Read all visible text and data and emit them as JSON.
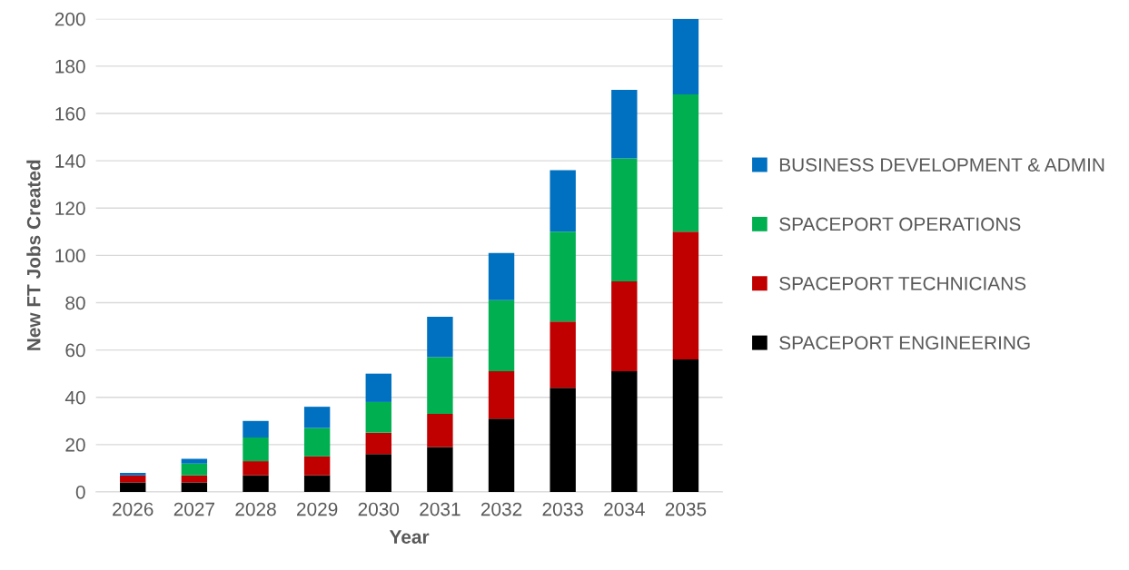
{
  "chart_data": {
    "type": "bar",
    "stacked": true,
    "xlabel": "Year",
    "ylabel": "New FT Jobs Created",
    "categories": [
      "2026",
      "2027",
      "2028",
      "2029",
      "2030",
      "2031",
      "2032",
      "2033",
      "2034",
      "2035"
    ],
    "series": [
      {
        "name": "SPACEPORT ENGINEERING",
        "color": "#000000",
        "values": [
          4,
          4,
          7,
          7,
          16,
          19,
          31,
          44,
          51,
          56
        ]
      },
      {
        "name": "SPACEPORT TECHNICIANS",
        "color": "#c00000",
        "values": [
          3,
          3,
          6,
          8,
          9,
          14,
          20,
          28,
          38,
          54
        ]
      },
      {
        "name": "SPACEPORT OPERATIONS",
        "color": "#00b050",
        "values": [
          0,
          5,
          10,
          12,
          13,
          24,
          30,
          38,
          52,
          58
        ]
      },
      {
        "name": "BUSINESS DEVELOPMENT & ADMIN",
        "color": "#0070c0",
        "values": [
          1,
          2,
          7,
          9,
          12,
          17,
          20,
          26,
          29,
          32
        ]
      }
    ],
    "ylim": [
      0,
      200
    ],
    "yticks": [
      0,
      20,
      40,
      60,
      80,
      100,
      120,
      140,
      160,
      180,
      200
    ],
    "grid": "y",
    "legend": "right"
  }
}
